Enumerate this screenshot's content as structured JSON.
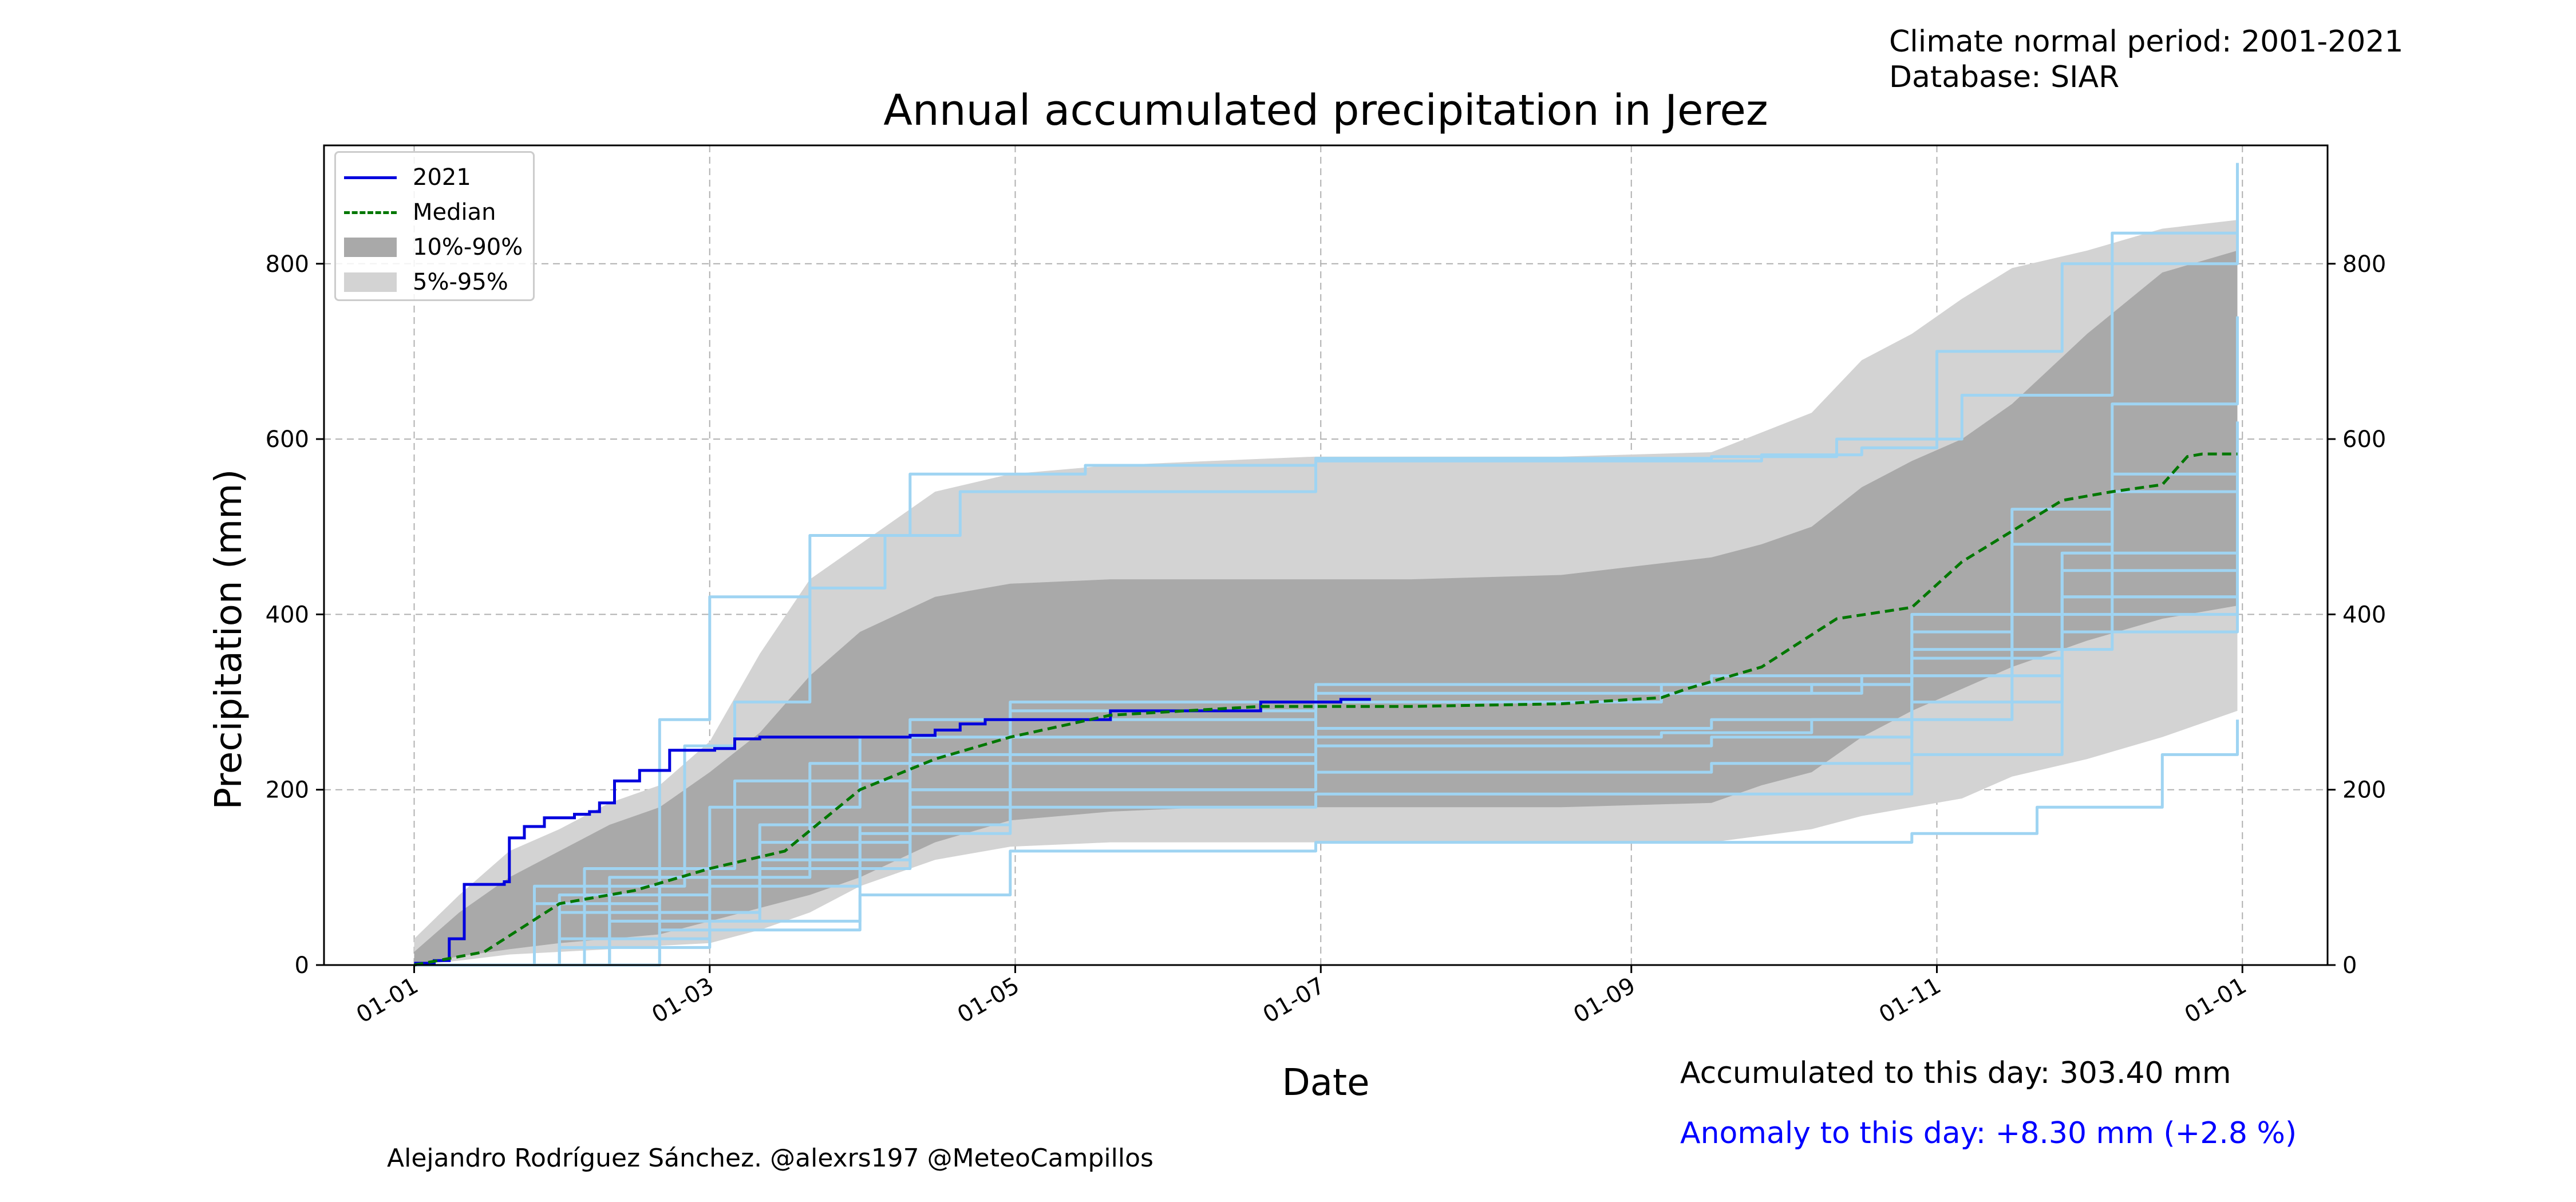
{
  "info": {
    "period": "Climate normal period: 2001-2021",
    "database": "Database: SIAR"
  },
  "footer": {
    "accumulated": "Accumulated to this day: 303.40 mm",
    "anomaly": "Anomaly to this day: +8.30 mm (+2.8 %)",
    "credit": "Alejandro Rodríguez Sánchez. @alexrs197 @MeteoCampillos"
  },
  "colors": {
    "current_year": "#0000dd",
    "median": "#007700",
    "band_10_90": "#a9a9a9",
    "band_5_95": "#d3d3d3",
    "historical_years": "#9fd4f2",
    "anomaly_text": "#0000ff"
  },
  "chart_data": {
    "type": "line",
    "title": "Annual accumulated precipitation in Jerez",
    "xlabel": "Date",
    "ylabel": "Precipitation (mm)",
    "x_unit": "day_of_year",
    "x_ticks": [
      {
        "day": 1,
        "label": "01-01"
      },
      {
        "day": 60,
        "label": "01-03"
      },
      {
        "day": 121,
        "label": "01-05"
      },
      {
        "day": 182,
        "label": "01-07"
      },
      {
        "day": 244,
        "label": "01-09"
      },
      {
        "day": 305,
        "label": "01-11"
      },
      {
        "day": 366,
        "label": "01-01"
      }
    ],
    "xlim": [
      -17,
      383
    ],
    "ylim": [
      0,
      935
    ],
    "y_ticks": [
      0,
      200,
      400,
      600,
      800
    ],
    "grid": true,
    "right_axis_mirrored": true,
    "legend": {
      "placement": "top-left",
      "entries": [
        "2021",
        "Median",
        "10%-90%",
        "5%-95%"
      ]
    },
    "series": [
      {
        "name": "2021",
        "style": "line",
        "x": [
          1,
          5,
          8,
          11,
          19,
          20,
          23,
          27,
          33,
          36,
          38,
          41,
          46,
          51,
          52,
          61,
          65,
          70,
          80,
          100,
          105,
          110,
          115,
          140,
          170,
          186,
          192
        ],
        "y": [
          2,
          5,
          30,
          92,
          95,
          145,
          158,
          168,
          172,
          175,
          185,
          210,
          222,
          222,
          245,
          247,
          258,
          260,
          260,
          262,
          268,
          275,
          280,
          290,
          300,
          303,
          303
        ]
      },
      {
        "name": "Median",
        "style": "dashed",
        "x": [
          1,
          15,
          30,
          45,
          60,
          75,
          90,
          105,
          120,
          140,
          170,
          200,
          230,
          250,
          255,
          270,
          285,
          300,
          310,
          320,
          330,
          340,
          350,
          355,
          358,
          365
        ],
        "y": [
          0,
          15,
          70,
          85,
          110,
          130,
          200,
          235,
          260,
          285,
          295,
          295,
          298,
          305,
          315,
          340,
          395,
          408,
          460,
          495,
          530,
          540,
          548,
          580,
          583,
          583
        ]
      }
    ],
    "bands": [
      {
        "name": "5%-95%",
        "x": [
          1,
          10,
          20,
          30,
          40,
          50,
          60,
          70,
          80,
          90,
          105,
          120,
          140,
          160,
          181,
          200,
          230,
          260,
          280,
          290,
          300,
          310,
          320,
          335,
          350,
          365
        ],
        "lower": [
          0,
          5,
          12,
          15,
          18,
          22,
          25,
          40,
          60,
          90,
          120,
          135,
          140,
          140,
          140,
          140,
          140,
          140,
          155,
          170,
          180,
          190,
          215,
          235,
          260,
          290
        ],
        "upper": [
          30,
          80,
          130,
          155,
          185,
          205,
          255,
          355,
          440,
          480,
          540,
          560,
          570,
          575,
          580,
          580,
          580,
          585,
          630,
          690,
          720,
          760,
          795,
          815,
          840,
          850
        ]
      },
      {
        "name": "10%-90%",
        "x": [
          1,
          10,
          20,
          30,
          40,
          50,
          60,
          70,
          80,
          90,
          105,
          120,
          140,
          160,
          181,
          200,
          230,
          260,
          270,
          280,
          290,
          300,
          310,
          320,
          335,
          350,
          365
        ],
        "lower": [
          0,
          10,
          18,
          25,
          30,
          35,
          50,
          65,
          80,
          100,
          140,
          165,
          175,
          180,
          180,
          180,
          180,
          185,
          205,
          220,
          260,
          290,
          315,
          340,
          370,
          395,
          410
        ],
        "upper": [
          15,
          60,
          100,
          130,
          160,
          180,
          220,
          265,
          330,
          380,
          420,
          435,
          440,
          440,
          440,
          440,
          445,
          465,
          480,
          500,
          545,
          575,
          600,
          640,
          720,
          790,
          815
        ]
      }
    ],
    "historical_years": [
      {
        "x": [
          1,
          25,
          50,
          60,
          80,
          100,
          135,
          181,
          260,
          285,
          310,
          340,
          365
        ],
        "y": [
          0,
          70,
          280,
          420,
          490,
          560,
          570,
          578,
          580,
          600,
          650,
          835,
          850
        ]
      },
      {
        "x": [
          1,
          25,
          55,
          65,
          80,
          95,
          110,
          181,
          270,
          290,
          305,
          330,
          365
        ],
        "y": [
          0,
          90,
          250,
          300,
          430,
          490,
          540,
          575,
          582,
          590,
          700,
          800,
          915
        ]
      },
      {
        "x": [
          1,
          30,
          60,
          90,
          120,
          181,
          250,
          300,
          325,
          350,
          365
        ],
        "y": [
          0,
          20,
          50,
          80,
          130,
          140,
          140,
          150,
          180,
          240,
          280
        ]
      },
      {
        "x": [
          1,
          30,
          60,
          90,
          120,
          181,
          250,
          280,
          300,
          330,
          365
        ],
        "y": [
          0,
          30,
          90,
          160,
          260,
          300,
          310,
          320,
          400,
          470,
          520
        ]
      },
      {
        "x": [
          1,
          40,
          70,
          100,
          181,
          260,
          300,
          330,
          365
        ],
        "y": [
          0,
          100,
          160,
          200,
          220,
          230,
          300,
          420,
          560
        ]
      },
      {
        "x": [
          1,
          40,
          70,
          100,
          181,
          270,
          300,
          330,
          365
        ],
        "y": [
          0,
          60,
          120,
          180,
          195,
          195,
          240,
          380,
          445
        ]
      },
      {
        "x": [
          1,
          30,
          60,
          90,
          120,
          181,
          260,
          300,
          320,
          340,
          365
        ],
        "y": [
          0,
          80,
          180,
          260,
          300,
          320,
          330,
          380,
          520,
          640,
          740
        ]
      },
      {
        "x": [
          1,
          50,
          80,
          120,
          181,
          250,
          290,
          320,
          340,
          365
        ],
        "y": [
          0,
          100,
          230,
          290,
          300,
          310,
          330,
          480,
          560,
          620
        ]
      },
      {
        "x": [
          1,
          35,
          65,
          100,
          181,
          250,
          300,
          330,
          365
        ],
        "y": [
          0,
          110,
          210,
          280,
          310,
          320,
          330,
          450,
          500
        ]
      },
      {
        "x": [
          1,
          40,
          70,
          100,
          181,
          250,
          280,
          300,
          330,
          365
        ],
        "y": [
          0,
          50,
          110,
          200,
          260,
          265,
          280,
          350,
          420,
          470
        ]
      },
      {
        "x": [
          1,
          30,
          70,
          100,
          181,
          260,
          300,
          340,
          365
        ],
        "y": [
          0,
          60,
          140,
          240,
          270,
          280,
          360,
          540,
          600
        ]
      },
      {
        "x": [
          1,
          50,
          90,
          120,
          181,
          260,
          300,
          320,
          365
        ],
        "y": [
          0,
          40,
          150,
          230,
          250,
          260,
          280,
          400,
          430
        ]
      }
    ]
  }
}
